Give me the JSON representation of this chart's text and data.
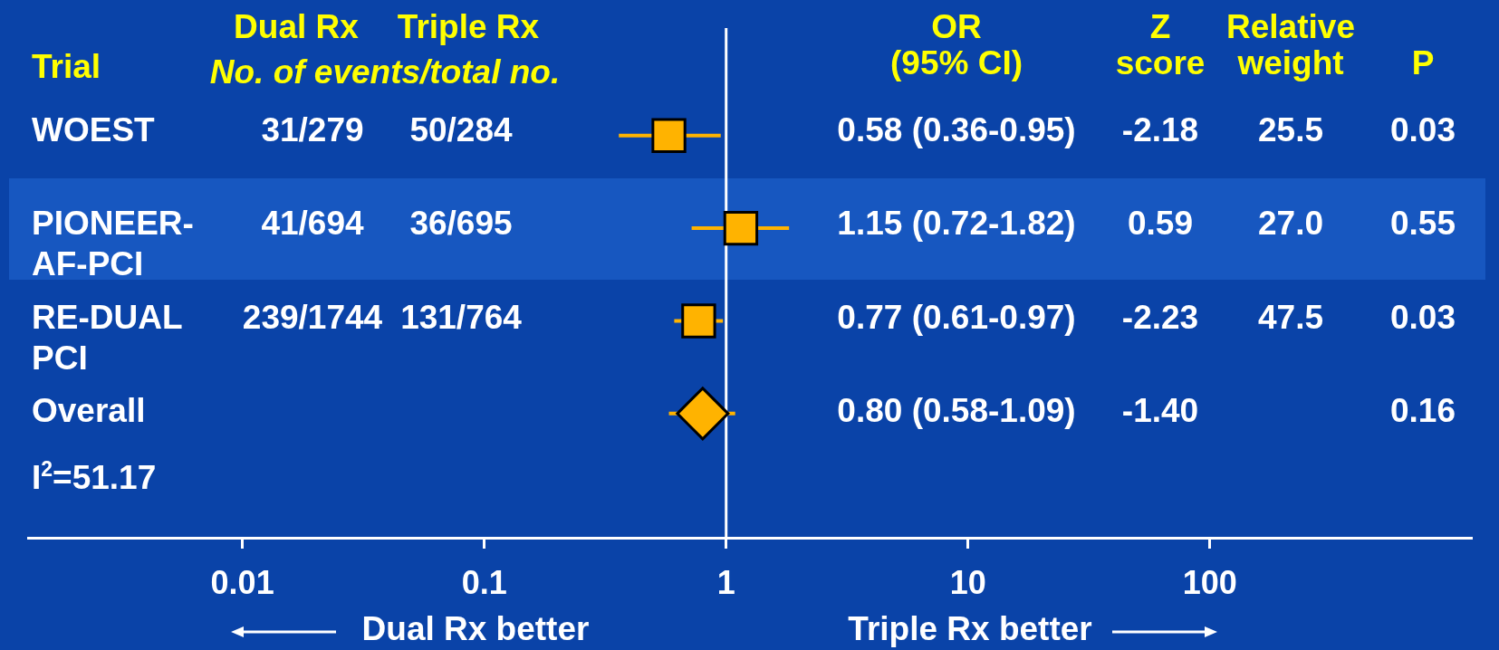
{
  "chart_data": {
    "type": "scatter",
    "orientation": "horizontal",
    "ylabel": "Trial",
    "categories": [
      "WOEST",
      "PIONEER-AF-PCI",
      "RE-DUAL PCI",
      "Overall"
    ],
    "series": [
      {
        "color": "#ffb300",
        "marker": "square",
        "values": [
          0.58,
          1.15,
          0.77,
          null
        ],
        "errors": [
          [
            0.36,
            0.95
          ],
          [
            0.72,
            1.82
          ],
          [
            0.61,
            0.97
          ],
          null
        ]
      },
      {
        "color": "#ffb300",
        "marker": "diamond",
        "values": [
          null,
          null,
          null,
          0.8
        ],
        "errors": [
          null,
          null,
          null,
          [
            0.58,
            1.09
          ]
        ]
      }
    ],
    "log": "x",
    "xlim": [
      0.0013,
      1200
    ],
    "xticks": [
      0.01,
      0.1,
      1,
      10,
      100
    ],
    "grid": false,
    "legend": false,
    "ref_lines": [
      {
        "axis": "x",
        "value": 1,
        "color": "#ffffff"
      }
    ],
    "annotations": [
      "Dual Rx",
      "Triple Rx",
      "No. of events/total no.",
      "OR",
      "(95% CI)",
      "Z",
      "score",
      "Relative",
      "weight",
      "P",
      "31/279",
      "50/284",
      "-2.18",
      "25.5",
      "0.03",
      "41/694",
      "36/695",
      "0.59",
      "27.0",
      "0.55",
      "239/1744",
      "131/764",
      "-2.23",
      "47.5",
      "0.03",
      "-1.40",
      "0.16",
      "I$^{2}$=51.17",
      "Dual Rx better",
      "Triple Rx better",
      "0.58 (0.36-0.95)",
      "1.15 (0.72-1.82)",
      "0.77 (0.61-0.97)",
      "0.80 (0.58-1.09)"
    ]
  }
}
